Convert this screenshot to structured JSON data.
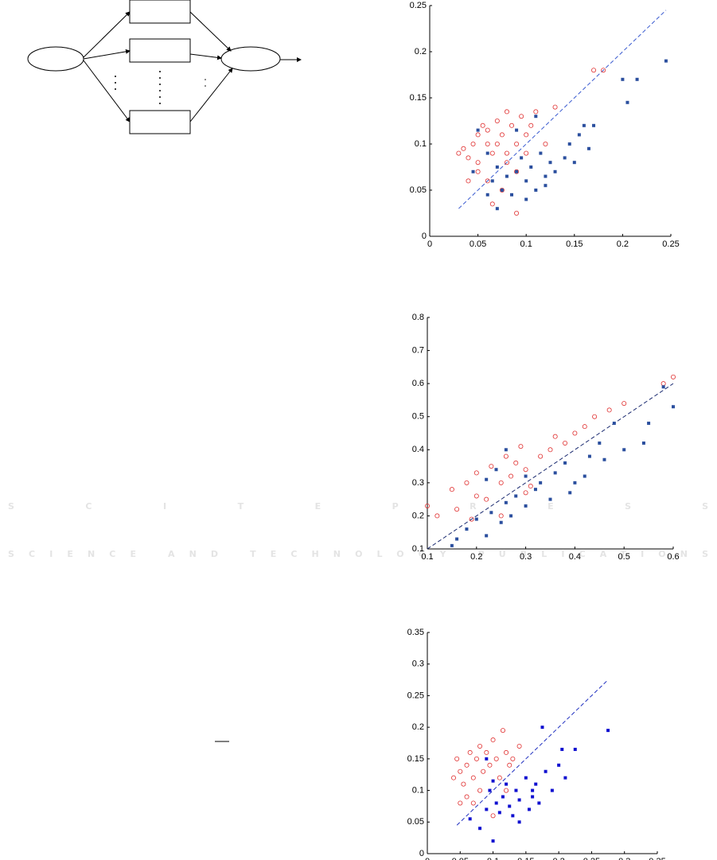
{
  "watermark": {
    "title": "SCITEPRESS",
    "subtitle": "SCIENCE AND TECHNOLOGY PUBLICATIONS"
  },
  "chart_data": [
    {
      "type": "scatter",
      "xlim": [
        0,
        0.25
      ],
      "ylim": [
        0,
        0.25
      ],
      "xticks": [
        0,
        0.05,
        0.1,
        0.15,
        0.2,
        0.25
      ],
      "yticks": [
        0,
        0.05,
        0.1,
        0.15,
        0.2,
        0.25
      ],
      "reference_line": {
        "color": "#3a5bd0",
        "x": [
          0.03,
          0.245
        ],
        "values": [
          0.03,
          0.245
        ]
      },
      "series": [
        {
          "color": "#e03030",
          "marker": "circle",
          "x": [
            0.03,
            0.035,
            0.04,
            0.045,
            0.05,
            0.05,
            0.055,
            0.06,
            0.06,
            0.065,
            0.07,
            0.07,
            0.075,
            0.08,
            0.08,
            0.085,
            0.09,
            0.09,
            0.095,
            0.1,
            0.1,
            0.105,
            0.11,
            0.12,
            0.13,
            0.04,
            0.06,
            0.075,
            0.09,
            0.17,
            0.18,
            0.065,
            0.08,
            0.05
          ],
          "values": [
            0.09,
            0.095,
            0.085,
            0.1,
            0.08,
            0.11,
            0.12,
            0.1,
            0.115,
            0.09,
            0.125,
            0.1,
            0.11,
            0.135,
            0.09,
            0.12,
            0.1,
            0.07,
            0.13,
            0.11,
            0.09,
            0.12,
            0.135,
            0.1,
            0.14,
            0.06,
            0.06,
            0.05,
            0.025,
            0.18,
            0.18,
            0.035,
            0.08,
            0.07
          ]
        },
        {
          "color": "#2b4f9e",
          "marker": "square",
          "x": [
            0.05,
            0.06,
            0.065,
            0.07,
            0.07,
            0.075,
            0.08,
            0.085,
            0.09,
            0.095,
            0.1,
            0.1,
            0.105,
            0.11,
            0.11,
            0.115,
            0.12,
            0.125,
            0.13,
            0.14,
            0.145,
            0.15,
            0.155,
            0.16,
            0.165,
            0.17,
            0.2,
            0.205,
            0.215,
            0.245,
            0.06,
            0.045,
            0.09,
            0.12
          ],
          "values": [
            0.115,
            0.09,
            0.06,
            0.075,
            0.03,
            0.05,
            0.065,
            0.045,
            0.07,
            0.085,
            0.04,
            0.06,
            0.075,
            0.05,
            0.13,
            0.09,
            0.065,
            0.08,
            0.07,
            0.085,
            0.1,
            0.08,
            0.11,
            0.12,
            0.095,
            0.12,
            0.17,
            0.145,
            0.17,
            0.19,
            0.045,
            0.07,
            0.115,
            0.055
          ]
        }
      ]
    },
    {
      "type": "scatter",
      "xlim": [
        0.1,
        0.6
      ],
      "ylim": [
        0.1,
        0.8
      ],
      "xticks": [
        0.1,
        0.2,
        0.3,
        0.4,
        0.5,
        0.6
      ],
      "yticks": [
        0.1,
        0.2,
        0.3,
        0.4,
        0.5,
        0.6,
        0.7,
        0.8
      ],
      "reference_line": {
        "color": "#1a2a70",
        "x": [
          0.1,
          0.6
        ],
        "values": [
          0.1,
          0.6
        ]
      },
      "series": [
        {
          "color": "#e03030",
          "marker": "circle",
          "x": [
            0.1,
            0.12,
            0.15,
            0.16,
            0.18,
            0.2,
            0.2,
            0.22,
            0.23,
            0.25,
            0.26,
            0.27,
            0.28,
            0.29,
            0.3,
            0.31,
            0.33,
            0.35,
            0.36,
            0.38,
            0.4,
            0.42,
            0.44,
            0.47,
            0.5,
            0.58,
            0.6,
            0.25,
            0.19,
            0.3
          ],
          "values": [
            0.23,
            0.2,
            0.28,
            0.22,
            0.3,
            0.26,
            0.33,
            0.25,
            0.35,
            0.3,
            0.38,
            0.32,
            0.36,
            0.41,
            0.34,
            0.29,
            0.38,
            0.4,
            0.44,
            0.42,
            0.45,
            0.47,
            0.5,
            0.52,
            0.54,
            0.6,
            0.62,
            0.2,
            0.19,
            0.27
          ]
        },
        {
          "color": "#2b4f9e",
          "marker": "square",
          "x": [
            0.15,
            0.16,
            0.18,
            0.2,
            0.22,
            0.23,
            0.25,
            0.26,
            0.27,
            0.28,
            0.3,
            0.3,
            0.32,
            0.33,
            0.35,
            0.36,
            0.38,
            0.39,
            0.4,
            0.42,
            0.43,
            0.45,
            0.46,
            0.48,
            0.5,
            0.54,
            0.55,
            0.58,
            0.6,
            0.22,
            0.26,
            0.24
          ],
          "values": [
            0.11,
            0.13,
            0.16,
            0.19,
            0.14,
            0.21,
            0.18,
            0.24,
            0.2,
            0.26,
            0.23,
            0.32,
            0.28,
            0.3,
            0.25,
            0.33,
            0.36,
            0.27,
            0.3,
            0.32,
            0.38,
            0.42,
            0.37,
            0.48,
            0.4,
            0.42,
            0.48,
            0.59,
            0.53,
            0.31,
            0.4,
            0.34
          ]
        }
      ]
    },
    {
      "type": "scatter",
      "xlim": [
        0,
        0.35
      ],
      "ylim": [
        0,
        0.35
      ],
      "xticks": [
        0,
        0.05,
        0.1,
        0.15,
        0.2,
        0.25,
        0.3,
        0.35
      ],
      "yticks": [
        0,
        0.05,
        0.1,
        0.15,
        0.2,
        0.25,
        0.3,
        0.35
      ],
      "reference_line": {
        "color": "#2030c0",
        "x": [
          0.045,
          0.275
        ],
        "values": [
          0.045,
          0.275
        ]
      },
      "series": [
        {
          "color": "#e03030",
          "marker": "circle",
          "x": [
            0.04,
            0.045,
            0.05,
            0.055,
            0.06,
            0.065,
            0.07,
            0.075,
            0.08,
            0.085,
            0.09,
            0.095,
            0.1,
            0.105,
            0.11,
            0.115,
            0.12,
            0.125,
            0.13,
            0.14,
            0.06,
            0.08,
            0.1,
            0.07,
            0.12,
            0.05
          ],
          "values": [
            0.12,
            0.15,
            0.13,
            0.11,
            0.14,
            0.16,
            0.12,
            0.15,
            0.17,
            0.13,
            0.16,
            0.14,
            0.18,
            0.15,
            0.12,
            0.195,
            0.16,
            0.14,
            0.15,
            0.17,
            0.09,
            0.1,
            0.06,
            0.08,
            0.1,
            0.08
          ]
        },
        {
          "color": "#1010d0",
          "marker": "square",
          "x": [
            0.065,
            0.08,
            0.09,
            0.095,
            0.1,
            0.105,
            0.11,
            0.115,
            0.12,
            0.125,
            0.13,
            0.135,
            0.14,
            0.15,
            0.155,
            0.16,
            0.165,
            0.17,
            0.175,
            0.18,
            0.19,
            0.2,
            0.205,
            0.21,
            0.225,
            0.275,
            0.09,
            0.1,
            0.14,
            0.16
          ],
          "values": [
            0.055,
            0.04,
            0.07,
            0.1,
            0.02,
            0.08,
            0.065,
            0.09,
            0.11,
            0.075,
            0.06,
            0.1,
            0.085,
            0.12,
            0.07,
            0.09,
            0.11,
            0.08,
            0.2,
            0.13,
            0.1,
            0.14,
            0.165,
            0.12,
            0.165,
            0.195,
            0.15,
            0.115,
            0.05,
            0.1
          ]
        }
      ]
    }
  ]
}
